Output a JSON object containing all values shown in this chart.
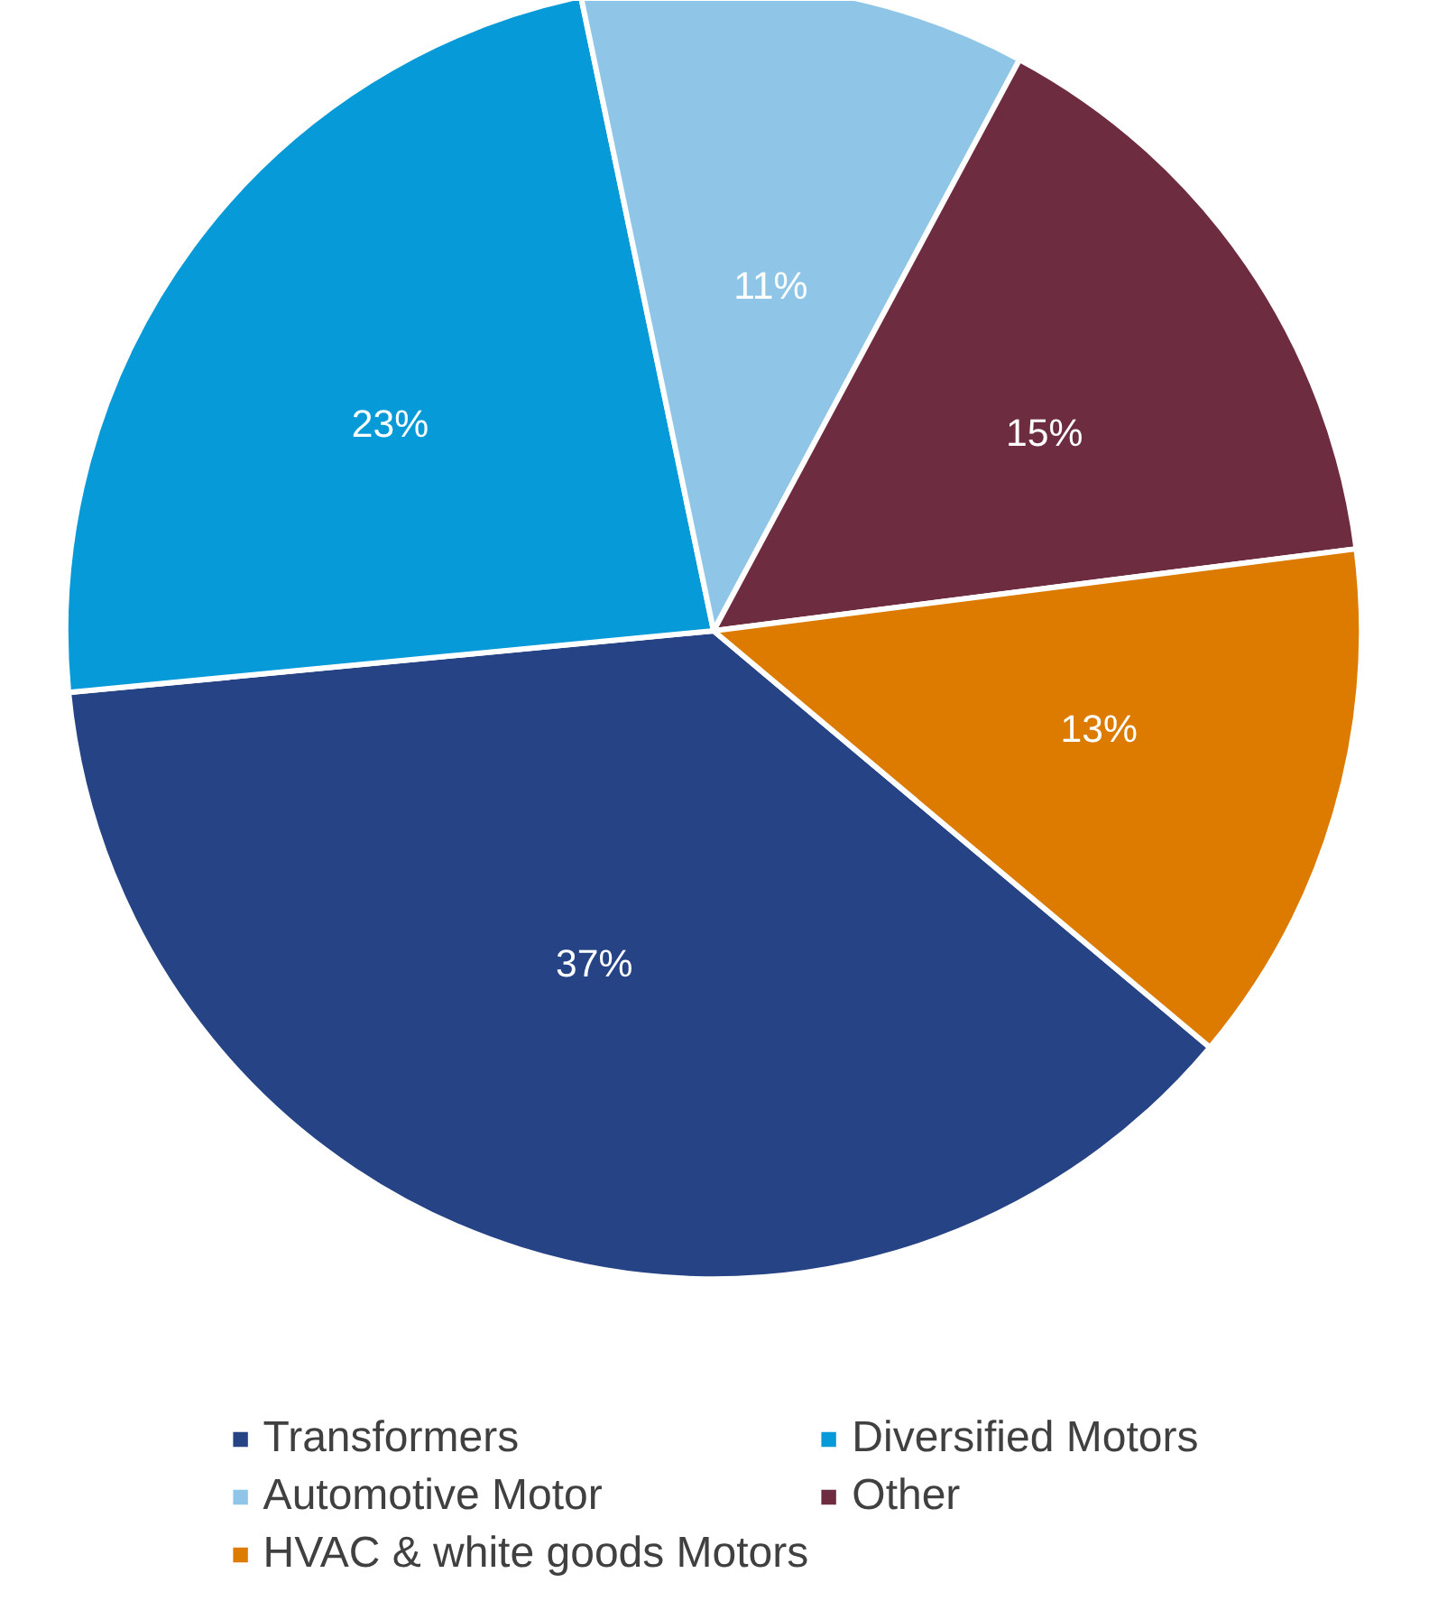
{
  "chart_data": {
    "type": "pie",
    "categories": [
      "Transformers",
      "Diversified Motors",
      "Automotive Motor",
      "Other",
      "HVAC & white goods Motors"
    ],
    "values": [
      37,
      23,
      11,
      15,
      13
    ],
    "colors": [
      "#254385",
      "#079ad9",
      "#8fc6e7",
      "#6e2c40",
      "#dc7b00"
    ],
    "value_labels": [
      "37%",
      "23%",
      "11%",
      "15%",
      "13%"
    ],
    "legend": "bottom"
  }
}
